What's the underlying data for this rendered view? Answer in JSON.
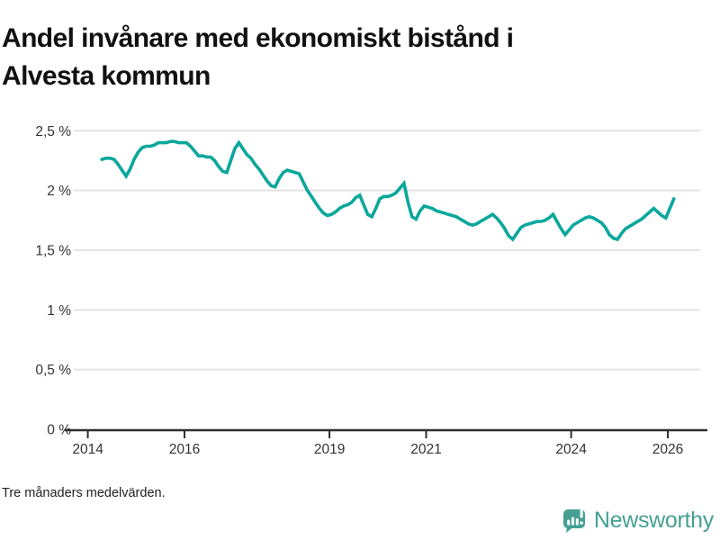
{
  "title": {
    "line1": "Andel invånare med ekonomiskt bistånd i",
    "line2": "Alvesta kommun"
  },
  "footnote": "Tre månaders medelvärden.",
  "branding": {
    "name": "Newsworthy",
    "icon": "newsworthy-speech-bubble-barchart-icon",
    "color": "#45a093"
  },
  "colors": {
    "line": "#0ba79c",
    "grid": "#e3e3e3",
    "axis": "#2f2f2f",
    "tick_text": "#333333",
    "title_text": "#111111"
  },
  "chart_data": {
    "type": "line",
    "title": "Andel invånare med ekonomiskt bistånd i Alvesta kommun",
    "subtitle": "Tre månaders medelvärden.",
    "xlabel": "",
    "ylabel": "",
    "unit": "%",
    "grid": "horizontal",
    "legend": "none",
    "ylim": [
      0,
      2.5
    ],
    "xlim": [
      2013.71,
      2026.67
    ],
    "y_ticks": {
      "values": [
        0,
        0.5,
        1,
        1.5,
        2,
        2.5
      ],
      "labels": [
        "0 %",
        "0,5 %",
        "1 %",
        "1,5 %",
        "2 %",
        "2,5 %"
      ]
    },
    "x_ticks": {
      "values": [
        2014,
        2016,
        2019,
        2021,
        2024,
        2026
      ],
      "labels": [
        "2014",
        "2016",
        "2019",
        "2021",
        "2024",
        "2026"
      ]
    },
    "series": [
      {
        "name": "Andel invånare med ekonomiskt bistånd, Alvesta kommun",
        "color": "#0ba79c",
        "points": [
          [
            "2014-04",
            2.26
          ],
          [
            "2014-05",
            2.27
          ],
          [
            "2014-06",
            2.27
          ],
          [
            "2014-07",
            2.26
          ],
          [
            "2014-08",
            2.22
          ],
          [
            "2014-09",
            2.17
          ],
          [
            "2014-10",
            2.12
          ],
          [
            "2014-11",
            2.18
          ],
          [
            "2014-12",
            2.26
          ],
          [
            "2015-01",
            2.32
          ],
          [
            "2015-02",
            2.36
          ],
          [
            "2015-03",
            2.37
          ],
          [
            "2015-04",
            2.37
          ],
          [
            "2015-05",
            2.38
          ],
          [
            "2015-06",
            2.4
          ],
          [
            "2015-07",
            2.4
          ],
          [
            "2015-08",
            2.4
          ],
          [
            "2015-09",
            2.41
          ],
          [
            "2015-10",
            2.41
          ],
          [
            "2015-11",
            2.4
          ],
          [
            "2015-12",
            2.4
          ],
          [
            "2016-01",
            2.4
          ],
          [
            "2016-02",
            2.37
          ],
          [
            "2016-03",
            2.33
          ],
          [
            "2016-04",
            2.29
          ],
          [
            "2016-05",
            2.29
          ],
          [
            "2016-06",
            2.28
          ],
          [
            "2016-07",
            2.28
          ],
          [
            "2016-08",
            2.25
          ],
          [
            "2016-09",
            2.2
          ],
          [
            "2016-10",
            2.16
          ],
          [
            "2016-11",
            2.15
          ],
          [
            "2016-12",
            2.25
          ],
          [
            "2017-01",
            2.35
          ],
          [
            "2017-02",
            2.4
          ],
          [
            "2017-03",
            2.35
          ],
          [
            "2017-04",
            2.3
          ],
          [
            "2017-05",
            2.27
          ],
          [
            "2017-06",
            2.22
          ],
          [
            "2017-07",
            2.18
          ],
          [
            "2017-08",
            2.13
          ],
          [
            "2017-09",
            2.08
          ],
          [
            "2017-10",
            2.04
          ],
          [
            "2017-11",
            2.03
          ],
          [
            "2017-12",
            2.1
          ],
          [
            "2018-01",
            2.15
          ],
          [
            "2018-02",
            2.17
          ],
          [
            "2018-03",
            2.16
          ],
          [
            "2018-04",
            2.15
          ],
          [
            "2018-05",
            2.14
          ],
          [
            "2018-06",
            2.07
          ],
          [
            "2018-07",
            2.0
          ],
          [
            "2018-08",
            1.95
          ],
          [
            "2018-09",
            1.9
          ],
          [
            "2018-10",
            1.85
          ],
          [
            "2018-11",
            1.81
          ],
          [
            "2018-12",
            1.79
          ],
          [
            "2019-01",
            1.8
          ],
          [
            "2019-02",
            1.82
          ],
          [
            "2019-03",
            1.85
          ],
          [
            "2019-04",
            1.87
          ],
          [
            "2019-05",
            1.88
          ],
          [
            "2019-06",
            1.9
          ],
          [
            "2019-07",
            1.94
          ],
          [
            "2019-08",
            1.96
          ],
          [
            "2019-09",
            1.88
          ],
          [
            "2019-10",
            1.8
          ],
          [
            "2019-11",
            1.78
          ],
          [
            "2019-12",
            1.85
          ],
          [
            "2020-01",
            1.93
          ],
          [
            "2020-02",
            1.95
          ],
          [
            "2020-03",
            1.95
          ],
          [
            "2020-04",
            1.96
          ],
          [
            "2020-05",
            1.98
          ],
          [
            "2020-06",
            2.02
          ],
          [
            "2020-07",
            2.06
          ],
          [
            "2020-08",
            1.9
          ],
          [
            "2020-09",
            1.78
          ],
          [
            "2020-10",
            1.76
          ],
          [
            "2020-11",
            1.83
          ],
          [
            "2020-12",
            1.87
          ],
          [
            "2021-01",
            1.86
          ],
          [
            "2021-02",
            1.85
          ],
          [
            "2021-03",
            1.83
          ],
          [
            "2021-04",
            1.82
          ],
          [
            "2021-05",
            1.81
          ],
          [
            "2021-06",
            1.8
          ],
          [
            "2021-07",
            1.79
          ],
          [
            "2021-08",
            1.78
          ],
          [
            "2021-09",
            1.76
          ],
          [
            "2021-10",
            1.74
          ],
          [
            "2021-11",
            1.72
          ],
          [
            "2021-12",
            1.71
          ],
          [
            "2022-01",
            1.72
          ],
          [
            "2022-02",
            1.74
          ],
          [
            "2022-03",
            1.76
          ],
          [
            "2022-04",
            1.78
          ],
          [
            "2022-05",
            1.8
          ],
          [
            "2022-06",
            1.77
          ],
          [
            "2022-07",
            1.73
          ],
          [
            "2022-08",
            1.68
          ],
          [
            "2022-09",
            1.62
          ],
          [
            "2022-10",
            1.59
          ],
          [
            "2022-11",
            1.64
          ],
          [
            "2022-12",
            1.69
          ],
          [
            "2023-01",
            1.71
          ],
          [
            "2023-02",
            1.72
          ],
          [
            "2023-03",
            1.73
          ],
          [
            "2023-04",
            1.74
          ],
          [
            "2023-05",
            1.74
          ],
          [
            "2023-06",
            1.75
          ],
          [
            "2023-07",
            1.77
          ],
          [
            "2023-08",
            1.8
          ],
          [
            "2023-09",
            1.74
          ],
          [
            "2023-10",
            1.68
          ],
          [
            "2023-11",
            1.63
          ],
          [
            "2023-12",
            1.67
          ],
          [
            "2024-01",
            1.71
          ],
          [
            "2024-02",
            1.73
          ],
          [
            "2024-03",
            1.75
          ],
          [
            "2024-04",
            1.77
          ],
          [
            "2024-05",
            1.78
          ],
          [
            "2024-06",
            1.77
          ],
          [
            "2024-07",
            1.75
          ],
          [
            "2024-08",
            1.73
          ],
          [
            "2024-09",
            1.69
          ],
          [
            "2024-10",
            1.63
          ],
          [
            "2024-11",
            1.6
          ],
          [
            "2024-12",
            1.59
          ],
          [
            "2025-01",
            1.64
          ],
          [
            "2025-02",
            1.68
          ],
          [
            "2025-03",
            1.7
          ],
          [
            "2025-04",
            1.72
          ],
          [
            "2025-05",
            1.74
          ],
          [
            "2025-06",
            1.76
          ],
          [
            "2025-07",
            1.79
          ],
          [
            "2025-08",
            1.82
          ],
          [
            "2025-09",
            1.85
          ],
          [
            "2025-10",
            1.82
          ],
          [
            "2025-11",
            1.79
          ],
          [
            "2025-12",
            1.77
          ],
          [
            "2026-01",
            1.85
          ],
          [
            "2026-02",
            1.93
          ]
        ]
      }
    ]
  }
}
